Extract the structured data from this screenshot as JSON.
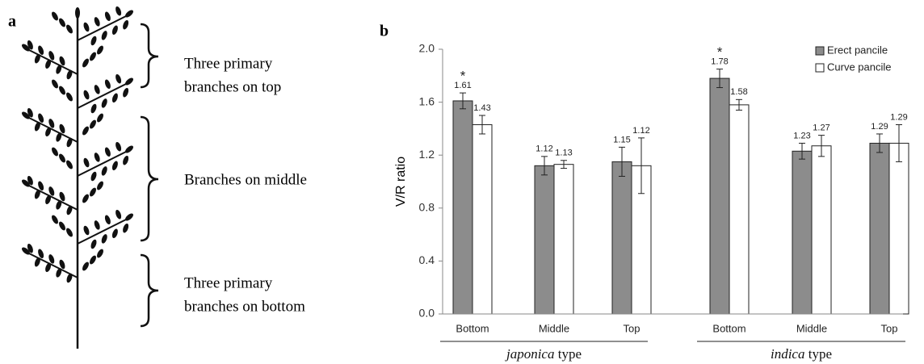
{
  "diagram": {
    "label": "a",
    "annotations": [
      [
        "Three primary",
        "branches on top"
      ],
      [
        "Branches on middle"
      ],
      [
        "Three primary",
        "branches on bottom"
      ]
    ]
  },
  "chart_data": {
    "type": "bar",
    "label": "b",
    "y_label": "V/R ratio",
    "categories": [
      "Bottom",
      "Middle",
      "Top",
      "Bottom",
      "Middle",
      "Top"
    ],
    "groups": [
      {
        "italic": "japonica",
        "name": "type"
      },
      {
        "italic": "indica",
        "name": "type"
      }
    ],
    "series": [
      {
        "name": "Erect pancile",
        "color": "#8c8c8c",
        "values": [
          1.61,
          1.12,
          1.15,
          1.78,
          1.23,
          1.29
        ],
        "errors": [
          0.06,
          0.07,
          0.11,
          0.07,
          0.06,
          0.07
        ],
        "marks": [
          "*",
          null,
          null,
          "*",
          null,
          null
        ]
      },
      {
        "name": "Curve pancile",
        "color": "#ffffff",
        "values": [
          1.43,
          1.13,
          1.12,
          1.58,
          1.27,
          1.29
        ],
        "errors": [
          0.07,
          0.03,
          0.21,
          0.04,
          0.08,
          0.14
        ]
      }
    ],
    "ylim": [
      0,
      2
    ],
    "yticks": [
      {
        "value": 0,
        "label": "0.0"
      },
      {
        "value": 0.4,
        "label": "0.4"
      },
      {
        "value": 0.8,
        "label": "0.8"
      },
      {
        "value": 1.2,
        "label": "1.2"
      },
      {
        "value": 1.6,
        "label": "1.6"
      },
      {
        "value": 2,
        "label": "2.0"
      }
    ],
    "legend": "top-right"
  }
}
